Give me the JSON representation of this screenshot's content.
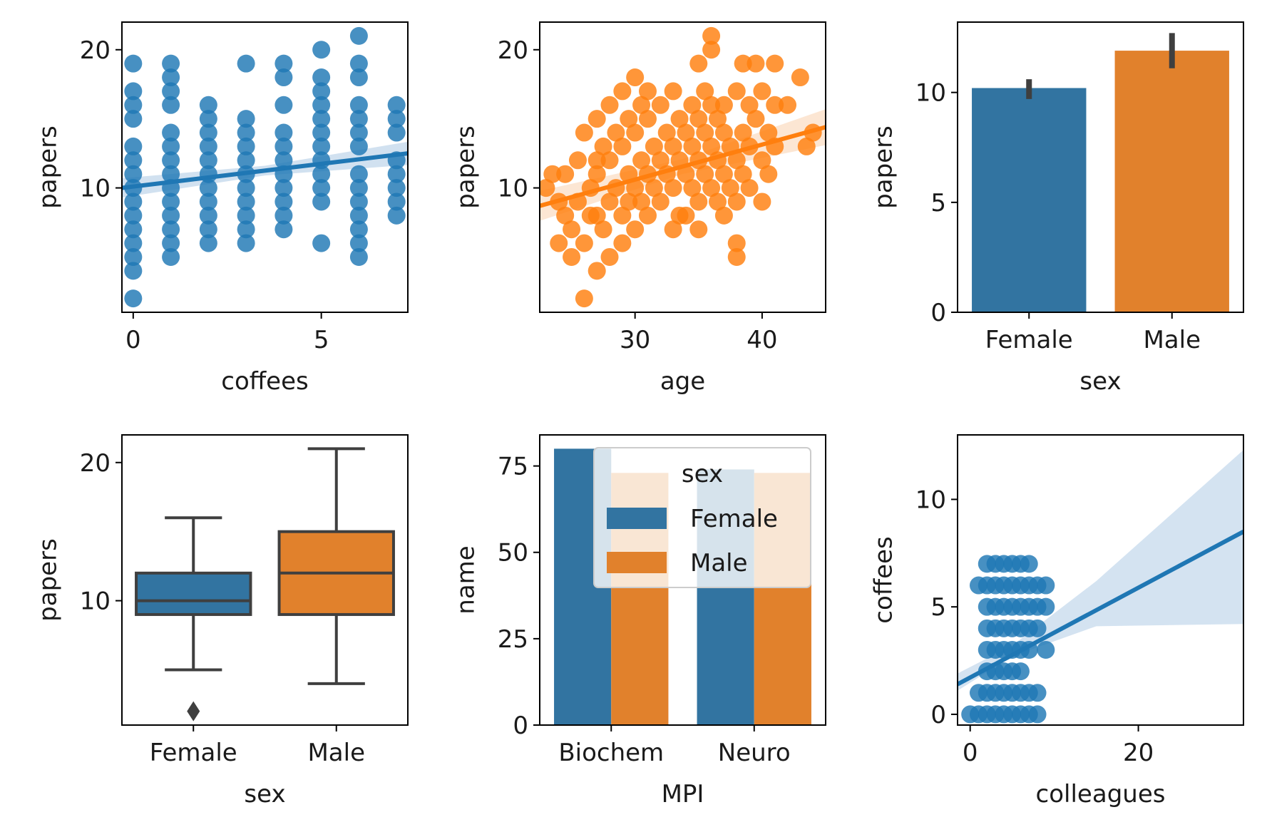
{
  "colors": {
    "blue": "#3274a1",
    "orange": "#e1812c",
    "pt_blue": "#1f77b4",
    "pt_orange": "#ff7f0e",
    "dark": "#3f3f3f",
    "band_blue": "#c6d9ec",
    "band_orange": "#fbe0c8",
    "legend_frame": "#cccccc"
  },
  "chart_data": [
    {
      "type": "scatter",
      "xlabel": "coffees",
      "ylabel": "papers",
      "xlim": [
        -0.3,
        7.3
      ],
      "ylim": [
        1,
        22
      ],
      "xticks": [
        "0",
        "5"
      ],
      "yticks": [
        "10",
        "20"
      ],
      "grid": false,
      "points": [
        [
          0,
          2
        ],
        [
          0,
          4
        ],
        [
          0,
          5
        ],
        [
          0,
          6
        ],
        [
          0,
          7
        ],
        [
          0,
          8
        ],
        [
          0,
          9
        ],
        [
          0,
          10
        ],
        [
          0,
          11
        ],
        [
          0,
          12
        ],
        [
          0,
          13
        ],
        [
          0,
          15
        ],
        [
          0,
          16
        ],
        [
          0,
          17
        ],
        [
          0,
          19
        ],
        [
          1,
          5
        ],
        [
          1,
          6
        ],
        [
          1,
          7
        ],
        [
          1,
          8
        ],
        [
          1,
          9
        ],
        [
          1,
          10
        ],
        [
          1,
          11
        ],
        [
          1,
          12
        ],
        [
          1,
          13
        ],
        [
          1,
          14
        ],
        [
          1,
          16
        ],
        [
          1,
          17
        ],
        [
          1,
          18
        ],
        [
          1,
          19
        ],
        [
          2,
          6
        ],
        [
          2,
          7
        ],
        [
          2,
          8
        ],
        [
          2,
          9
        ],
        [
          2,
          10
        ],
        [
          2,
          11
        ],
        [
          2,
          12
        ],
        [
          2,
          13
        ],
        [
          2,
          14
        ],
        [
          2,
          15
        ],
        [
          2,
          16
        ],
        [
          3,
          6
        ],
        [
          3,
          7
        ],
        [
          3,
          8
        ],
        [
          3,
          9
        ],
        [
          3,
          10
        ],
        [
          3,
          11
        ],
        [
          3,
          12
        ],
        [
          3,
          13
        ],
        [
          3,
          14
        ],
        [
          3,
          15
        ],
        [
          3,
          19
        ],
        [
          4,
          7
        ],
        [
          4,
          8
        ],
        [
          4,
          9
        ],
        [
          4,
          10
        ],
        [
          4,
          11
        ],
        [
          4,
          12
        ],
        [
          4,
          13
        ],
        [
          4,
          14
        ],
        [
          4,
          16
        ],
        [
          4,
          18
        ],
        [
          4,
          19
        ],
        [
          5,
          6
        ],
        [
          5,
          9
        ],
        [
          5,
          10
        ],
        [
          5,
          11
        ],
        [
          5,
          12
        ],
        [
          5,
          13
        ],
        [
          5,
          14
        ],
        [
          5,
          15
        ],
        [
          5,
          16
        ],
        [
          5,
          17
        ],
        [
          5,
          18
        ],
        [
          5,
          20
        ],
        [
          6,
          5
        ],
        [
          6,
          6
        ],
        [
          6,
          7
        ],
        [
          6,
          8
        ],
        [
          6,
          9
        ],
        [
          6,
          10
        ],
        [
          6,
          11
        ],
        [
          6,
          13
        ],
        [
          6,
          14
        ],
        [
          6,
          15
        ],
        [
          6,
          16
        ],
        [
          6,
          18
        ],
        [
          6,
          19
        ],
        [
          6,
          21
        ],
        [
          7,
          8
        ],
        [
          7,
          9
        ],
        [
          7,
          10
        ],
        [
          7,
          11
        ],
        [
          7,
          12
        ],
        [
          7,
          14
        ],
        [
          7,
          15
        ],
        [
          7,
          16
        ]
      ],
      "fit": {
        "x": [
          -0.3,
          7.3
        ],
        "y": [
          10.0,
          12.5
        ]
      }
    },
    {
      "type": "scatter",
      "xlabel": "age",
      "ylabel": "papers",
      "xlim": [
        22.5,
        45
      ],
      "ylim": [
        1,
        22
      ],
      "xticks": [
        "30",
        "40"
      ],
      "yticks": [
        "10",
        "20"
      ],
      "grid": false,
      "points": [
        [
          23,
          10
        ],
        [
          23.5,
          11
        ],
        [
          24,
          9
        ],
        [
          24,
          6
        ],
        [
          24.5,
          8
        ],
        [
          25,
          5
        ],
        [
          25,
          7
        ],
        [
          25.5,
          12
        ],
        [
          25.5,
          9
        ],
        [
          26,
          14
        ],
        [
          26,
          6
        ],
        [
          26.5,
          10
        ],
        [
          26,
          2
        ],
        [
          27,
          15
        ],
        [
          27,
          11
        ],
        [
          27,
          8
        ],
        [
          27,
          4
        ],
        [
          27.5,
          13
        ],
        [
          27.5,
          7
        ],
        [
          28,
          16
        ],
        [
          28,
          12
        ],
        [
          28,
          9
        ],
        [
          28,
          5
        ],
        [
          28.5,
          14
        ],
        [
          28.5,
          10
        ],
        [
          29,
          17
        ],
        [
          29,
          13
        ],
        [
          29,
          8
        ],
        [
          29,
          6
        ],
        [
          29.5,
          15
        ],
        [
          29.5,
          11
        ],
        [
          30,
          18
        ],
        [
          30,
          14
        ],
        [
          30,
          10
        ],
        [
          30,
          7
        ],
        [
          30.5,
          16
        ],
        [
          30.5,
          12
        ],
        [
          30.5,
          9
        ],
        [
          31,
          15
        ],
        [
          31,
          11
        ],
        [
          31,
          8
        ],
        [
          31.5,
          13
        ],
        [
          31.5,
          10
        ],
        [
          32,
          16
        ],
        [
          32,
          12
        ],
        [
          32,
          9
        ],
        [
          32.5,
          14
        ],
        [
          32.5,
          11
        ],
        [
          33,
          17
        ],
        [
          33,
          13
        ],
        [
          33,
          10
        ],
        [
          33,
          7
        ],
        [
          33.5,
          15
        ],
        [
          33.5,
          12
        ],
        [
          34,
          14
        ],
        [
          34,
          11
        ],
        [
          34,
          8
        ],
        [
          34.5,
          16
        ],
        [
          34.5,
          13
        ],
        [
          34.5,
          10
        ],
        [
          35,
          19
        ],
        [
          35,
          15
        ],
        [
          35,
          12
        ],
        [
          35,
          9
        ],
        [
          35.5,
          17
        ],
        [
          35.5,
          14
        ],
        [
          35.5,
          11
        ],
        [
          36,
          21
        ],
        [
          36,
          20
        ],
        [
          36,
          16
        ],
        [
          36,
          13
        ],
        [
          36,
          10
        ],
        [
          36.5,
          15
        ],
        [
          36.5,
          12
        ],
        [
          37,
          14
        ],
        [
          37,
          11
        ],
        [
          37,
          8
        ],
        [
          37.5,
          13
        ],
        [
          37.5,
          10
        ],
        [
          38,
          17
        ],
        [
          38,
          12
        ],
        [
          38,
          9
        ],
        [
          38,
          6
        ],
        [
          38.5,
          19
        ],
        [
          38.5,
          14
        ],
        [
          38.5,
          11
        ],
        [
          39,
          16
        ],
        [
          39,
          13
        ],
        [
          39,
          10
        ],
        [
          39.5,
          19
        ],
        [
          39.5,
          15
        ],
        [
          40,
          17
        ],
        [
          40,
          12
        ],
        [
          40.5,
          14
        ],
        [
          40.5,
          11
        ],
        [
          41,
          19
        ],
        [
          41,
          13
        ],
        [
          41,
          16
        ],
        [
          42,
          16
        ],
        [
          43,
          18
        ],
        [
          43.5,
          13
        ],
        [
          44,
          14
        ],
        [
          38,
          5
        ],
        [
          36.5,
          9
        ],
        [
          27,
          12
        ],
        [
          26.5,
          8
        ],
        [
          24.5,
          11
        ],
        [
          29.5,
          9
        ],
        [
          31,
          17
        ],
        [
          33.5,
          8
        ],
        [
          35,
          7
        ],
        [
          37,
          16
        ],
        [
          40,
          9
        ]
      ],
      "fit": {
        "x": [
          22.5,
          45
        ],
        "y": [
          8.7,
          14.4
        ]
      }
    },
    {
      "type": "bar",
      "xlabel": "sex",
      "ylabel": "papers",
      "categories": [
        "Female",
        "Male"
      ],
      "values": [
        10.2,
        11.9
      ],
      "err_low": [
        9.7,
        11.1
      ],
      "err_high": [
        10.6,
        12.7
      ],
      "ylim": [
        0,
        13.2
      ],
      "yticks": [
        "0",
        "5",
        "10"
      ]
    },
    {
      "type": "box",
      "xlabel": "sex",
      "ylabel": "papers",
      "categories": [
        "Female",
        "Male"
      ],
      "boxes": [
        {
          "whislo": 5,
          "q1": 9,
          "med": 10,
          "q3": 12,
          "whishi": 16,
          "fliers": [
            2
          ]
        },
        {
          "whislo": 4,
          "q1": 9,
          "med": 12,
          "q3": 15,
          "whishi": 21,
          "fliers": []
        }
      ],
      "ylim": [
        1,
        22
      ],
      "yticks": [
        "10",
        "20"
      ]
    },
    {
      "type": "bar",
      "xlabel": "MPI",
      "ylabel": "name",
      "categories": [
        "Biochem",
        "Neuro"
      ],
      "series": [
        {
          "name": "Female",
          "values": [
            80,
            74
          ]
        },
        {
          "name": "Male",
          "values": [
            73,
            73
          ]
        }
      ],
      "ylim": [
        0,
        84
      ],
      "yticks": [
        "0",
        "25",
        "50",
        "75"
      ],
      "legend": {
        "title": "sex",
        "placement": "top-right"
      }
    },
    {
      "type": "scatter",
      "xlabel": "colleagues",
      "ylabel": "coffees",
      "xlim": [
        -1.5,
        32.5
      ],
      "ylim": [
        -0.5,
        13
      ],
      "xticks": [
        "0",
        "20"
      ],
      "yticks": [
        "0",
        "5",
        "10"
      ],
      "grid": false,
      "points": [
        [
          0,
          0
        ],
        [
          1,
          0
        ],
        [
          2,
          0
        ],
        [
          3,
          0
        ],
        [
          4,
          0
        ],
        [
          5,
          0
        ],
        [
          6,
          0
        ],
        [
          7,
          0
        ],
        [
          8,
          0
        ],
        [
          1,
          1
        ],
        [
          2,
          1
        ],
        [
          3,
          1
        ],
        [
          4,
          1
        ],
        [
          5,
          1
        ],
        [
          6,
          1
        ],
        [
          7,
          1
        ],
        [
          8,
          1
        ],
        [
          2,
          2
        ],
        [
          3,
          2
        ],
        [
          4,
          2
        ],
        [
          5,
          2
        ],
        [
          6,
          2
        ],
        [
          2,
          3
        ],
        [
          3,
          3
        ],
        [
          4,
          3
        ],
        [
          5,
          3
        ],
        [
          6,
          3
        ],
        [
          7,
          3
        ],
        [
          9,
          3
        ],
        [
          2,
          4
        ],
        [
          3,
          4
        ],
        [
          4,
          4
        ],
        [
          5,
          4
        ],
        [
          6,
          4
        ],
        [
          7,
          4
        ],
        [
          8,
          4
        ],
        [
          2,
          5
        ],
        [
          3,
          5
        ],
        [
          4,
          5
        ],
        [
          5,
          5
        ],
        [
          6,
          5
        ],
        [
          7,
          5
        ],
        [
          8,
          5
        ],
        [
          9,
          5
        ],
        [
          1,
          6
        ],
        [
          2,
          6
        ],
        [
          3,
          6
        ],
        [
          4,
          6
        ],
        [
          5,
          6
        ],
        [
          6,
          6
        ],
        [
          7,
          6
        ],
        [
          8,
          6
        ],
        [
          9,
          6
        ],
        [
          2,
          7
        ],
        [
          3,
          7
        ],
        [
          4,
          7
        ],
        [
          5,
          7
        ],
        [
          6,
          7
        ],
        [
          7,
          7
        ]
      ],
      "fit": {
        "x": [
          -1.5,
          32.5
        ],
        "y": [
          1.4,
          8.5
        ]
      },
      "band": {
        "x": [
          -1.5,
          5,
          15,
          32.5
        ],
        "lo": [
          1.1,
          2.7,
          4.1,
          4.2
        ],
        "hi": [
          1.9,
          3.2,
          6.2,
          12.3
        ]
      }
    }
  ]
}
